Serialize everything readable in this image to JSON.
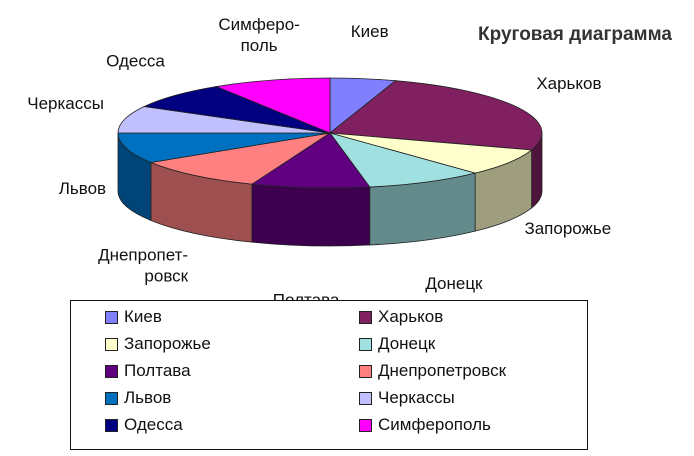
{
  "chart_data": {
    "type": "pie",
    "title": "Круговая диаграмма",
    "three_d": true,
    "legend_position": "bottom",
    "slices": [
      {
        "name": "Киев",
        "value": 5,
        "color": "#8080ff"
      },
      {
        "name": "Харьков",
        "value": 25,
        "color": "#802060"
      },
      {
        "name": "Запорожье",
        "value": 8,
        "color": "#ffffcc"
      },
      {
        "name": "Донецк",
        "value": 9,
        "color": "#a0e0e0"
      },
      {
        "name": "Полтава",
        "value": 9,
        "color": "#600080"
      },
      {
        "name": "Днепропетровск",
        "value": 10,
        "color": "#ff8080"
      },
      {
        "name": "Львов",
        "value": 9,
        "color": "#0070c0"
      },
      {
        "name": "Черкассы",
        "value": 8,
        "color": "#c0c0ff"
      },
      {
        "name": "Одесса",
        "value": 8,
        "color": "#000080"
      },
      {
        "name": "Симферополь",
        "value": 9,
        "color": "#ff00ff"
      }
    ],
    "slice_labels": [
      [
        "Киев"
      ],
      [
        "Харьков"
      ],
      [
        "Запорожье"
      ],
      [
        "Донецк"
      ],
      [
        "Полтава"
      ],
      [
        "Днепропет-",
        "ровск"
      ],
      [
        "Львов"
      ],
      [
        "Черкассы"
      ],
      [
        "Одесса"
      ],
      [
        "Симферо-",
        "поль"
      ]
    ]
  }
}
